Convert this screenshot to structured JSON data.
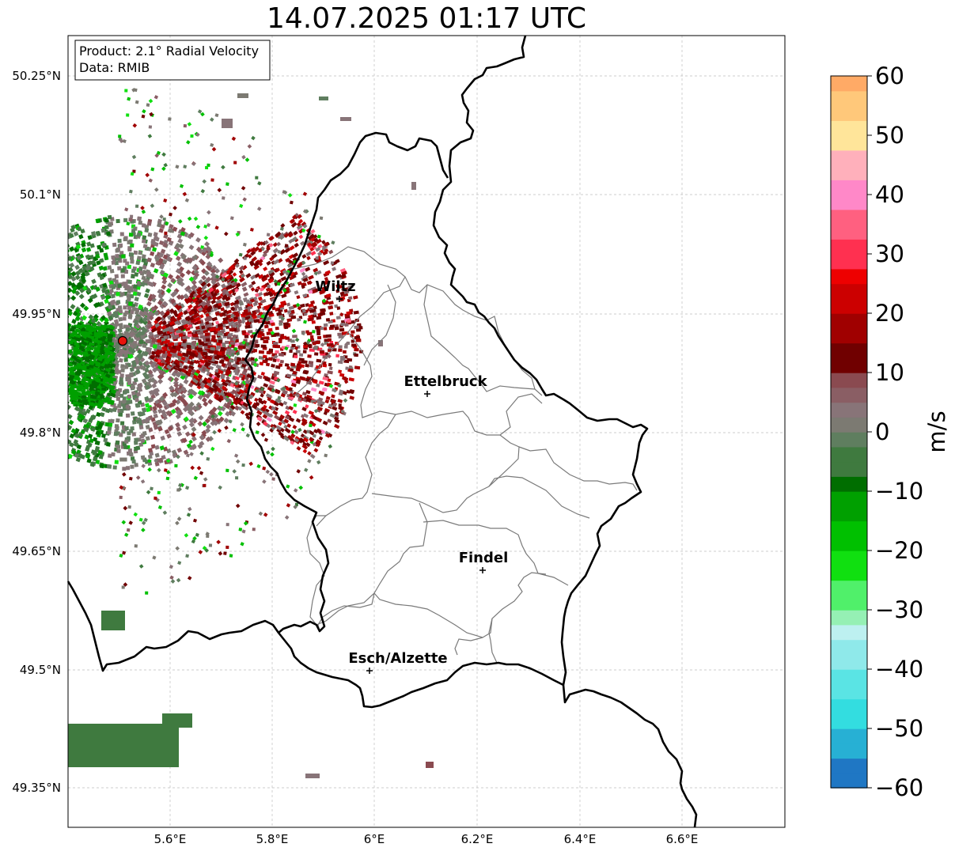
{
  "title": "14.07.2025 01:17 UTC",
  "info_box": {
    "product": "Product: 2.1° Radial Velocity",
    "data": "Data: RMIB"
  },
  "lat_ticks": [
    "50.25°N",
    "50.1°N",
    "49.95°N",
    "49.8°N",
    "49.65°N",
    "49.5°N",
    "49.35°N"
  ],
  "lon_ticks": [
    "5.6°E",
    "5.8°E",
    "6°E",
    "6.2°E",
    "6.4°E",
    "6.6°E"
  ],
  "cities": [
    {
      "name": "Wiltz"
    },
    {
      "name": "Ettelbruck"
    },
    {
      "name": "Findel"
    },
    {
      "name": "Esch/Alzette"
    }
  ],
  "colorbar": {
    "unit": "m/s",
    "ticks": [
      "60",
      "50",
      "40",
      "30",
      "20",
      "10",
      "0",
      "−10",
      "−20",
      "−30",
      "−40",
      "−50",
      "−60"
    ],
    "range": [
      -60,
      60
    ]
  },
  "colors": {
    "radar_site": "#e8140c",
    "border": "#000000",
    "district": "#7a7a7a",
    "grid": "#b4b4b4"
  }
}
